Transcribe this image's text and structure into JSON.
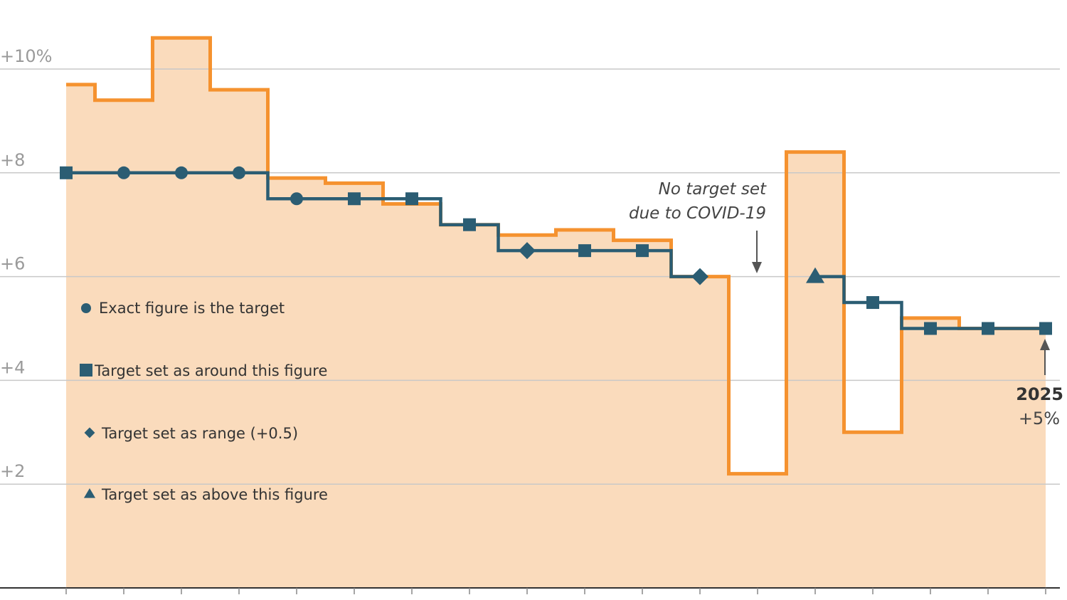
{
  "chart_data": {
    "type": "line",
    "y_ticks": [
      {
        "value": 10,
        "label": "+10%"
      },
      {
        "value": 8,
        "label": "+8"
      },
      {
        "value": 6,
        "label": "+6"
      },
      {
        "value": 4,
        "label": "+4"
      },
      {
        "value": 2,
        "label": "+2"
      }
    ],
    "ylim": [
      0,
      11
    ],
    "x_count": 18,
    "grid": true,
    "series": [
      {
        "key": "actual",
        "color": "#f5922f",
        "fill": "#fadbbc",
        "values": [
          9.7,
          9.4,
          10.6,
          9.6,
          7.9,
          7.8,
          7.4,
          7.0,
          6.8,
          6.9,
          6.7,
          6.0,
          2.2,
          8.4,
          3.0,
          5.2,
          5.0,
          5.0
        ]
      },
      {
        "key": "target",
        "color": "#2b5d73",
        "values": [
          8.0,
          8.0,
          8.0,
          8.0,
          7.5,
          7.5,
          7.5,
          7.0,
          6.5,
          6.5,
          6.5,
          6.0,
          null,
          6.0,
          5.5,
          5.0,
          5.0,
          5.0
        ],
        "markers": [
          "square",
          "circle",
          "circle",
          "circle",
          "circle",
          "square",
          "square",
          "square",
          "diamond",
          "square",
          "square",
          "diamond",
          null,
          "triangle",
          "square",
          "square",
          "square",
          "square"
        ]
      }
    ],
    "legend": [
      {
        "marker": "circle",
        "label": "Exact figure is the target"
      },
      {
        "marker": "square",
        "label": "Target set as around this figure"
      },
      {
        "marker": "diamond",
        "label": "Target set as range (+0.5)"
      },
      {
        "marker": "triangle",
        "label": "Target set as above this figure"
      }
    ],
    "annotations": {
      "covid_line1": "No target set",
      "covid_line2": "due to COVID-19",
      "end_year": "2025",
      "end_value": "+5%"
    }
  },
  "colors": {
    "actual_line": "#f5922f",
    "actual_fill": "#fadbbc",
    "target_line": "#2b5d73",
    "grid": "#c8c8c8",
    "axis": "#333333",
    "arrow": "#555555"
  }
}
